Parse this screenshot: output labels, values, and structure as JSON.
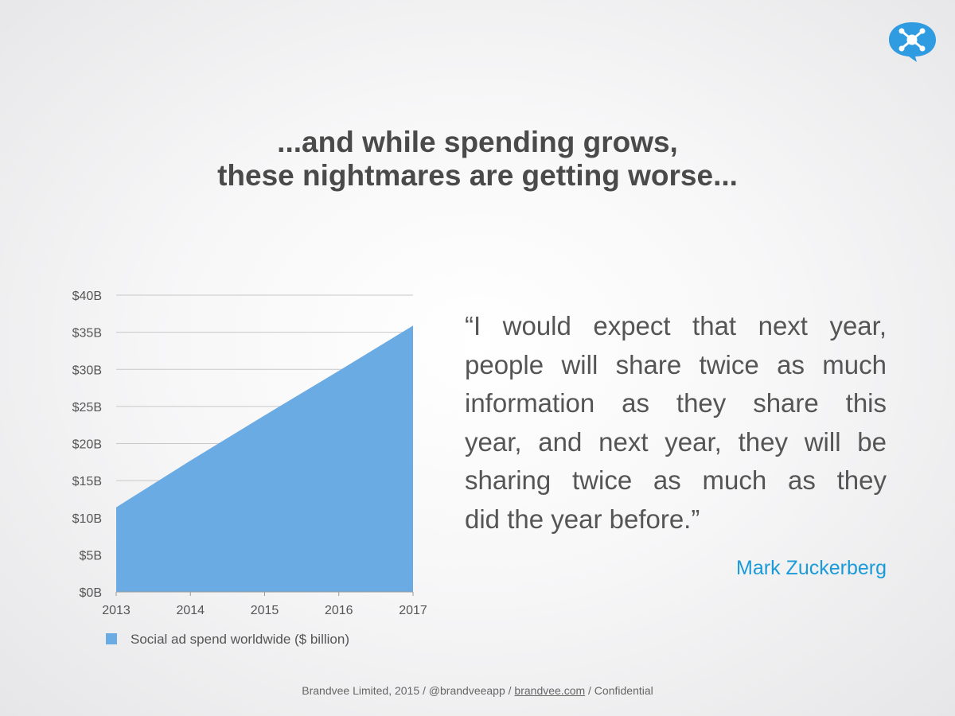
{
  "headline": {
    "line1": "...and while spending grows,",
    "line2": "these nightmares are getting worse..."
  },
  "logo": {
    "icon": "brandvee-logo-icon",
    "color": "#2f9be0"
  },
  "chart_data": {
    "type": "area",
    "x": [
      "2013",
      "2014",
      "2015",
      "2016",
      "2017"
    ],
    "series": [
      {
        "name": "Social ad spend worldwide ($ billion)",
        "values": [
          11.4,
          17.7,
          23.8,
          29.8,
          35.9
        ],
        "color": "#6aabe3"
      }
    ],
    "yticks": [
      "$0B",
      "$5B",
      "$10B",
      "$15B",
      "$20B",
      "$25B",
      "$30B",
      "$35B",
      "$40B"
    ],
    "ylim": [
      0,
      40
    ],
    "grid": true,
    "legend_position": "bottom-left"
  },
  "quote": {
    "lines": [
      "“I would expect that next year,",
      "people will share twice as much",
      "information as they share this",
      "year, and next year, they will be",
      "sharing twice as much as they",
      "did the year before.”"
    ],
    "author": "Mark Zuckerberg"
  },
  "footer": {
    "pre": "Brandvee Limited, 2015 / @brandveeapp / ",
    "link": "brandvee.com",
    "post": " / Confidential"
  }
}
